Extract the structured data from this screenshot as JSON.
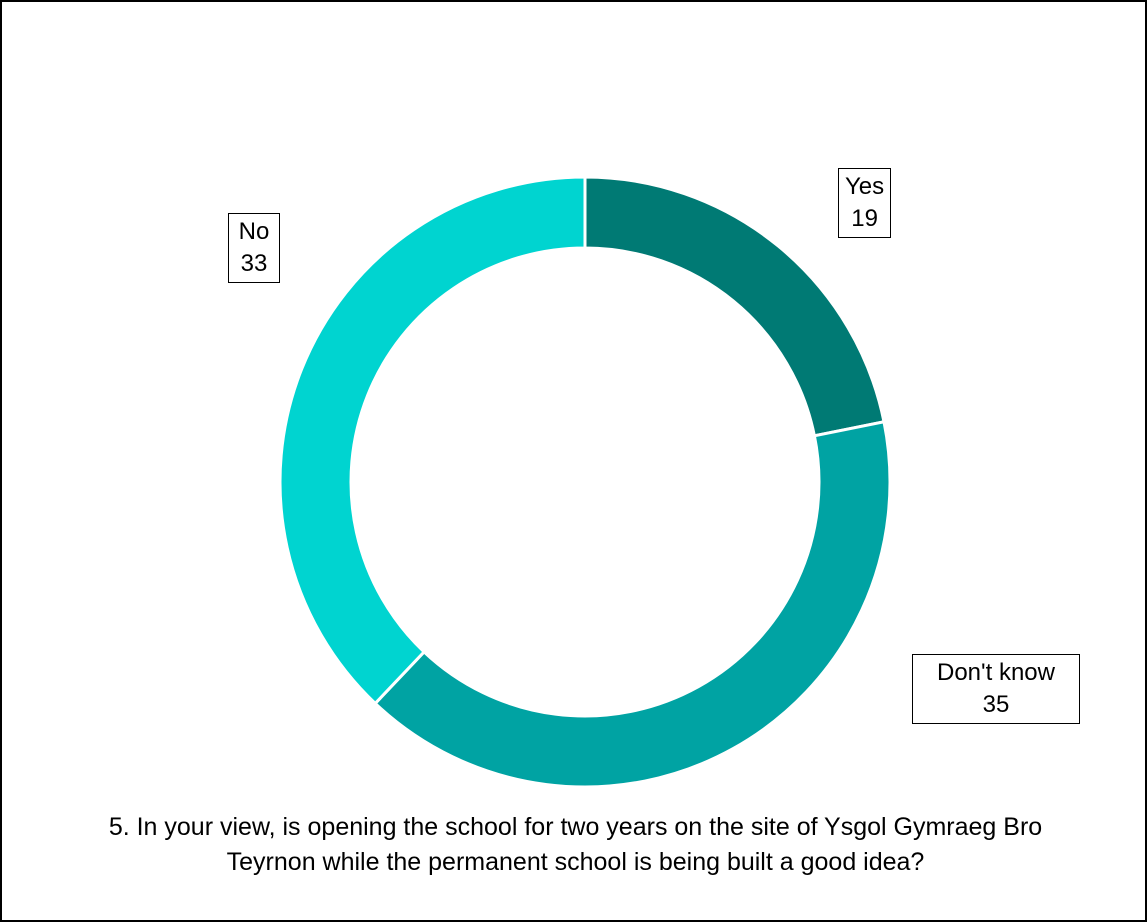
{
  "chart_data": {
    "type": "pie",
    "variant": "doughnut",
    "title": "5. In your view, is opening the school for two years on the site of Ysgol Gymraeg Bro Teyrnon while the permanent school is being built a good idea?",
    "categories": [
      "Yes",
      "Don't know",
      "No"
    ],
    "values": [
      19,
      35,
      33
    ],
    "colors": [
      "#007a74",
      "#00a3a3",
      "#00d4d0"
    ],
    "legend": "none",
    "start_angle_deg": 0,
    "direction": "clockwise"
  }
}
